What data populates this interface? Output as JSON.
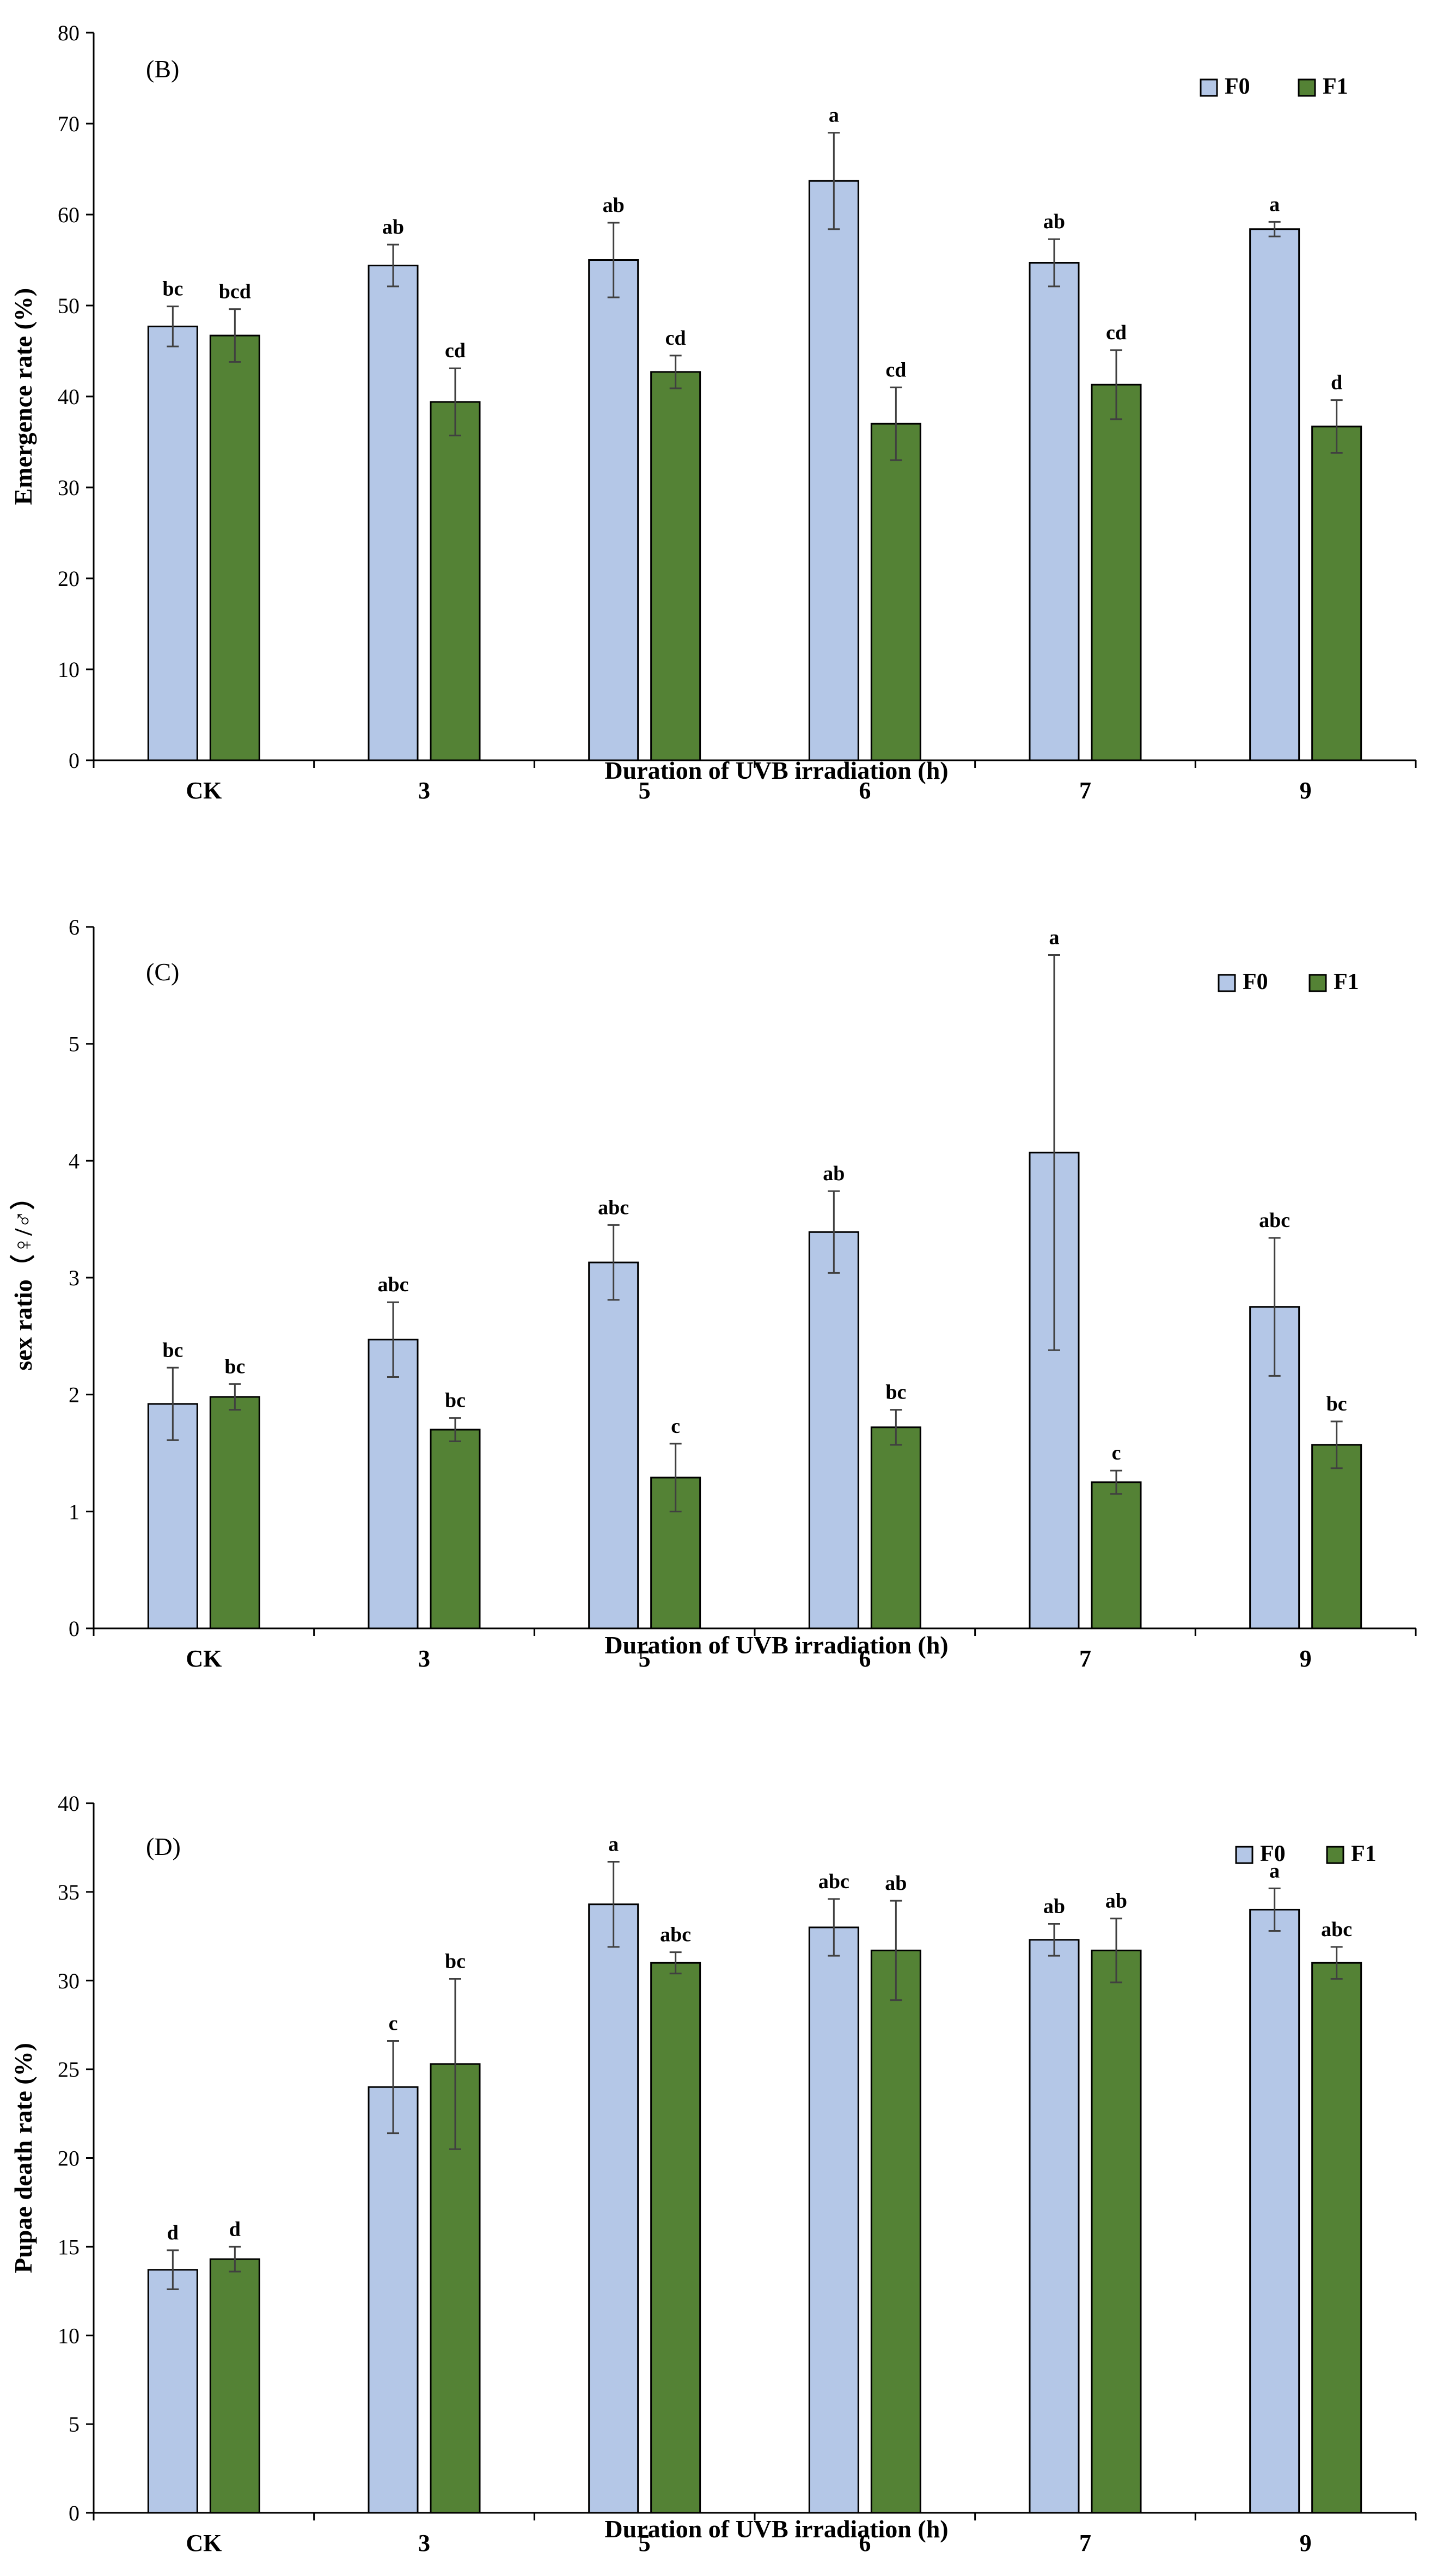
{
  "chart_data": [
    {
      "type": "bar",
      "panel_label": "(B)",
      "title": "",
      "xlabel": "Duration of UVB irradiation (h)",
      "ylabel": "Emergence rate (%)",
      "ylim": [
        0,
        80
      ],
      "yticks": [
        0,
        10,
        20,
        30,
        40,
        50,
        60,
        70,
        80
      ],
      "grid": false,
      "legend_position": "top-right",
      "categories": [
        "CK",
        "3",
        "5",
        "6",
        "7",
        "9"
      ],
      "series": [
        {
          "name": "F0",
          "color": "#b4c7e7",
          "values": [
            47.7,
            54.4,
            55.0,
            63.7,
            54.7,
            58.4
          ],
          "errors": [
            2.2,
            2.3,
            4.1,
            5.3,
            2.6,
            0.8
          ],
          "letters": [
            "bc",
            "ab",
            "ab",
            "a",
            "ab",
            "a"
          ]
        },
        {
          "name": "F1",
          "color": "#548235",
          "values": [
            46.7,
            39.4,
            42.7,
            37.0,
            41.3,
            36.7
          ],
          "errors": [
            2.9,
            3.7,
            1.8,
            4.0,
            3.8,
            2.9
          ],
          "letters": [
            "bcd",
            "cd",
            "cd",
            "cd",
            "cd",
            "d"
          ]
        }
      ]
    },
    {
      "type": "bar",
      "panel_label": "(C)",
      "title": "",
      "xlabel": "Duration of UVB irradiation (h)",
      "ylabel": "sex ratio（♀/♂）",
      "ylim": [
        0,
        6
      ],
      "yticks": [
        0,
        1,
        2,
        3,
        4,
        5,
        6
      ],
      "grid": false,
      "legend_position": "top-right",
      "categories": [
        "CK",
        "3",
        "5",
        "6",
        "7",
        "9"
      ],
      "series": [
        {
          "name": "F0",
          "color": "#b4c7e7",
          "values": [
            1.92,
            2.47,
            3.13,
            3.39,
            4.07,
            2.75
          ],
          "errors": [
            0.31,
            0.32,
            0.32,
            0.35,
            1.69,
            0.59
          ],
          "letters": [
            "bc",
            "abc",
            "abc",
            "ab",
            "a",
            "abc"
          ]
        },
        {
          "name": "F1",
          "color": "#548235",
          "values": [
            1.98,
            1.7,
            1.29,
            1.72,
            1.25,
            1.57
          ],
          "errors": [
            0.11,
            0.1,
            0.29,
            0.15,
            0.1,
            0.2
          ],
          "letters": [
            "bc",
            "bc",
            "c",
            "bc",
            "c",
            "bc"
          ]
        }
      ]
    },
    {
      "type": "bar",
      "panel_label": "(D)",
      "title": "",
      "xlabel": "Duration of UVB irradiation (h)",
      "ylabel": "Pupae death rate (%)",
      "ylim": [
        0,
        40
      ],
      "yticks": [
        0,
        5,
        10,
        15,
        20,
        25,
        30,
        35,
        40
      ],
      "grid": false,
      "legend_position": "top-right",
      "categories": [
        "CK",
        "3",
        "5",
        "6",
        "7",
        "9"
      ],
      "series": [
        {
          "name": "F0",
          "color": "#b4c7e7",
          "values": [
            13.7,
            24.0,
            34.3,
            33.0,
            32.3,
            34.0
          ],
          "errors": [
            1.1,
            2.6,
            2.4,
            1.6,
            0.9,
            1.2
          ],
          "letters": [
            "d",
            "c",
            "a",
            "abc",
            "ab",
            "a"
          ]
        },
        {
          "name": "F1",
          "color": "#548235",
          "values": [
            14.3,
            25.3,
            31.0,
            31.7,
            31.7,
            31.0
          ],
          "errors": [
            0.7,
            4.8,
            0.6,
            2.8,
            1.8,
            0.9
          ],
          "letters": [
            "d",
            "bc",
            "abc",
            "ab",
            "ab",
            "abc"
          ]
        }
      ]
    }
  ]
}
